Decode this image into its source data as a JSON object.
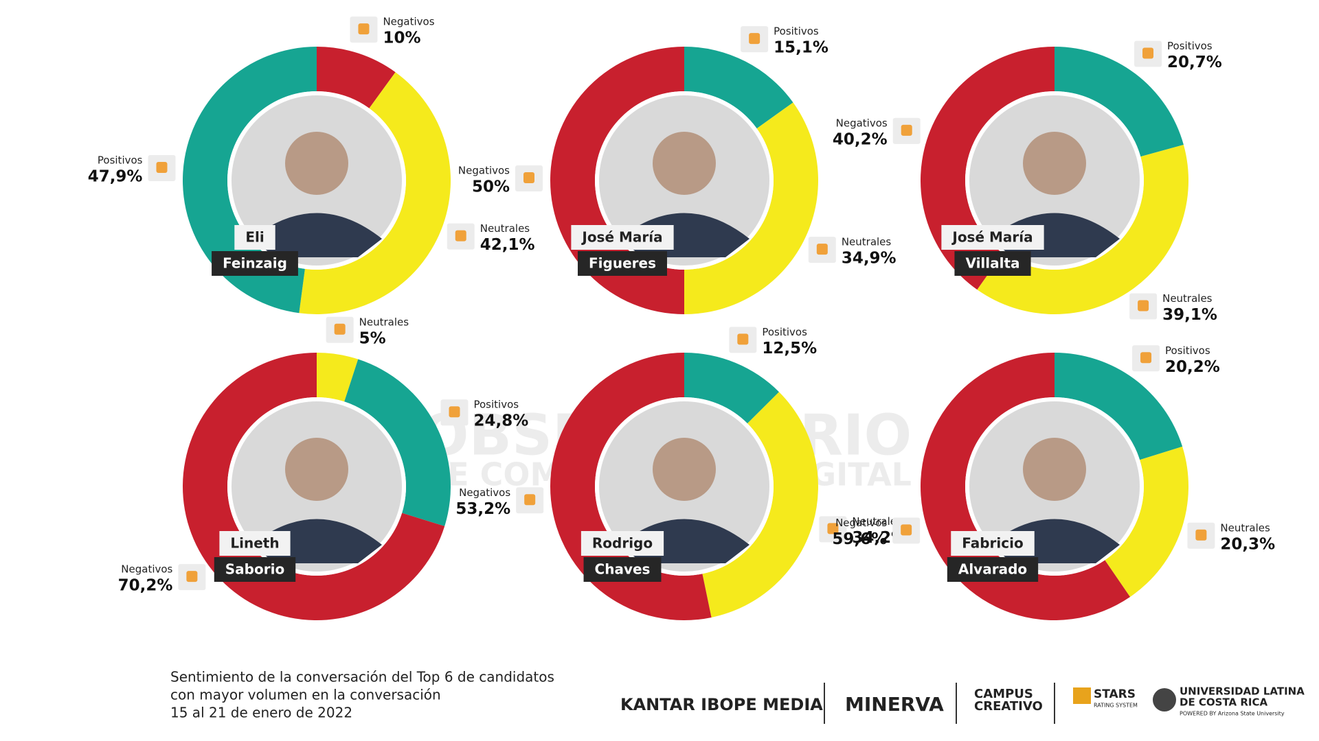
{
  "chart_data": [
    {
      "type": "pie",
      "donut": true,
      "candidate": [
        "Eli",
        "Feinzaig"
      ],
      "categories": [
        "Negativos",
        "Neutrales",
        "Positivos"
      ],
      "values": [
        10,
        42.1,
        47.9
      ],
      "value_labels": [
        "10%",
        "42,1%",
        "47,9%"
      ],
      "colors": [
        "#c8202e",
        "#f5ea1c",
        "#16a592"
      ]
    },
    {
      "type": "pie",
      "donut": true,
      "candidate": [
        "José María",
        "Figueres"
      ],
      "categories": [
        "Positivos",
        "Neutrales",
        "Negativos"
      ],
      "values": [
        15.1,
        34.9,
        50
      ],
      "value_labels": [
        "15,1%",
        "34,9%",
        "50%"
      ],
      "colors": [
        "#16a592",
        "#f5ea1c",
        "#c8202e"
      ]
    },
    {
      "type": "pie",
      "donut": true,
      "candidate": [
        "José María",
        "Villalta"
      ],
      "categories": [
        "Positivos",
        "Neutrales",
        "Negativos"
      ],
      "values": [
        20.7,
        39.1,
        40.2
      ],
      "value_labels": [
        "20,7%",
        "39,1%",
        "40,2%"
      ],
      "colors": [
        "#16a592",
        "#f5ea1c",
        "#c8202e"
      ]
    },
    {
      "type": "pie",
      "donut": true,
      "candidate": [
        "Lineth",
        "Saborio"
      ],
      "categories": [
        "Neutrales",
        "Positivos",
        "Negativos"
      ],
      "values": [
        5,
        24.8,
        70.2
      ],
      "value_labels": [
        "5%",
        "24,8%",
        "70,2%"
      ],
      "colors": [
        "#f5ea1c",
        "#16a592",
        "#c8202e"
      ]
    },
    {
      "type": "pie",
      "donut": true,
      "candidate": [
        "Rodrigo",
        "Chaves"
      ],
      "categories": [
        "Positivos",
        "Neutrales",
        "Negativos"
      ],
      "values": [
        12.5,
        34.2,
        53.2
      ],
      "value_labels": [
        "12,5%",
        "34,2%",
        "53,2%"
      ],
      "colors": [
        "#16a592",
        "#f5ea1c",
        "#c8202e"
      ]
    },
    {
      "type": "pie",
      "donut": true,
      "candidate": [
        "Fabricio",
        "Alvarado"
      ],
      "categories": [
        "Positivos",
        "Neutrales",
        "Negativos"
      ],
      "values": [
        20.2,
        20.3,
        59.6
      ],
      "value_labels": [
        "20,2%",
        "20,3%",
        "59,6%"
      ],
      "colors": [
        "#16a592",
        "#f5ea1c",
        "#c8202e"
      ]
    }
  ],
  "watermark": [
    "OBSERVATORIO",
    "DE COMUNICACIÓN DIGITAL"
  ],
  "caption": [
    "Sentimiento de la conversación del Top 6 de candidatos",
    "con mayor volumen en la conversación",
    "15 al 21 de enero de 2022"
  ],
  "logos": [
    "KANTAR IBOPE MEDIA",
    "MINERVA",
    "CAMPUS",
    "CREATIVO",
    "STARS",
    "RATING SYSTEM",
    "UNIVERSIDAD LATINA",
    "DE COSTA RICA",
    "POWERED BY Arizona State University"
  ]
}
